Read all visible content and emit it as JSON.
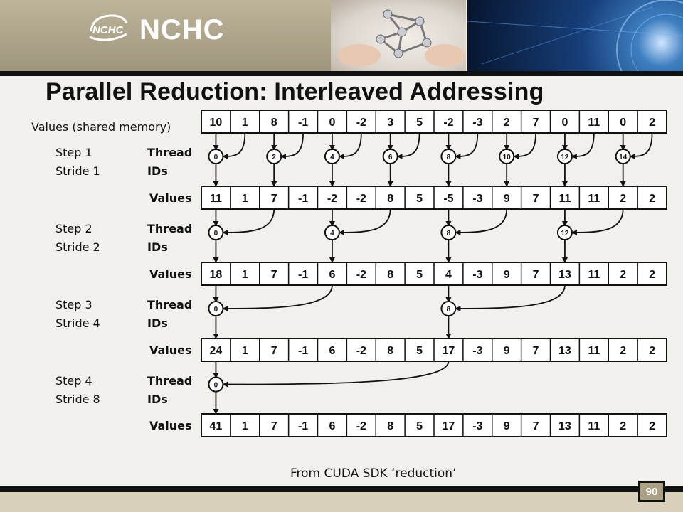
{
  "logo": {
    "text": "NCHC",
    "mark_text": "NCHC"
  },
  "title": "Parallel Reduction: Interleaved Addressing",
  "shared_memory_label": "Values (shared memory)",
  "values_label": "Values",
  "thread_label": "Thread",
  "ids_label": "IDs",
  "steps": [
    {
      "step": "Step 1",
      "stride": "Stride 1",
      "thread_ids": [
        0,
        2,
        4,
        6,
        8,
        10,
        12,
        14
      ],
      "values": [
        11,
        1,
        7,
        -1,
        -2,
        -2,
        8,
        5,
        -5,
        -3,
        9,
        7,
        11,
        11,
        2,
        2
      ]
    },
    {
      "step": "Step 2",
      "stride": "Stride 2",
      "thread_ids": [
        0,
        4,
        8,
        12
      ],
      "values": [
        18,
        1,
        7,
        -1,
        6,
        -2,
        8,
        5,
        4,
        -3,
        9,
        7,
        13,
        11,
        2,
        2
      ]
    },
    {
      "step": "Step 3",
      "stride": "Stride 4",
      "thread_ids": [
        0,
        8
      ],
      "values": [
        24,
        1,
        7,
        -1,
        6,
        -2,
        8,
        5,
        17,
        -3,
        9,
        7,
        13,
        11,
        2,
        2
      ]
    },
    {
      "step": "Step 4",
      "stride": "Stride 8",
      "thread_ids": [
        0
      ],
      "values": [
        41,
        1,
        7,
        -1,
        6,
        -2,
        8,
        5,
        17,
        -3,
        9,
        7,
        13,
        11,
        2,
        2
      ]
    }
  ],
  "initial_values": [
    10,
    1,
    8,
    -1,
    0,
    -2,
    3,
    5,
    -2,
    -3,
    2,
    7,
    0,
    11,
    0,
    2
  ],
  "footer_note": "From CUDA SDK ‘reduction’",
  "page_number": "90",
  "colors": {
    "banner": "#aaa283",
    "ink": "#111111",
    "background": "#f2f0ec"
  }
}
